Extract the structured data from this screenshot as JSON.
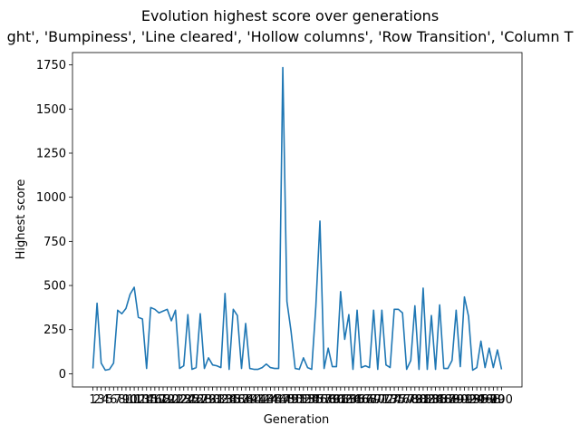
{
  "chart_data": {
    "type": "line",
    "title": "Evolution highest score over generations",
    "subtitle": "ght', 'Bumpiness', 'Line cleared', 'Hollow columns', 'Row Transition', 'Column T",
    "xlabel": "Generation",
    "ylabel": "Highest score",
    "ylim": [
      -75,
      1820
    ],
    "yticks": [
      0,
      250,
      500,
      750,
      1000,
      1250,
      1500,
      1750
    ],
    "grid": false,
    "line_color": "#1f77b4",
    "x": [
      1,
      2,
      3,
      4,
      5,
      6,
      7,
      8,
      9,
      10,
      11,
      12,
      13,
      14,
      15,
      16,
      17,
      18,
      19,
      20,
      21,
      22,
      23,
      24,
      25,
      26,
      27,
      28,
      29,
      30,
      31,
      32,
      33,
      34,
      35,
      36,
      37,
      38,
      39,
      40,
      41,
      42,
      43,
      44,
      45,
      46,
      47,
      48,
      49,
      50,
      51,
      52,
      53,
      54,
      55,
      56,
      57,
      58,
      59,
      60,
      61,
      62,
      63,
      64,
      65,
      66,
      67,
      68,
      69,
      70,
      71,
      72,
      73,
      74,
      75,
      76,
      77,
      78,
      79,
      80,
      81,
      82,
      83,
      84,
      85,
      86,
      87,
      88,
      89,
      90,
      91,
      92,
      93,
      94,
      95,
      96,
      97,
      98,
      99,
      100
    ],
    "series": [
      {
        "values": [
          30,
          400,
          60,
          20,
          25,
          60,
          360,
          340,
          370,
          450,
          490,
          320,
          310,
          30,
          375,
          365,
          345,
          355,
          365,
          300,
          360,
          30,
          45,
          335,
          25,
          35,
          340,
          30,
          90,
          50,
          45,
          35,
          455,
          25,
          365,
          330,
          30,
          285,
          30,
          25,
          25,
          35,
          55,
          35,
          30,
          30,
          1735,
          410,
          240,
          30,
          25,
          90,
          35,
          25,
          380,
          865,
          30,
          145,
          40,
          40,
          465,
          195,
          335,
          25,
          360,
          35,
          45,
          35,
          360,
          25,
          360,
          50,
          35,
          365,
          365,
          345,
          25,
          75,
          385,
          25,
          485,
          25,
          330,
          25,
          390,
          30,
          30,
          75,
          360,
          40,
          435,
          325,
          20,
          35,
          185,
          35,
          145,
          35,
          135,
          25
        ]
      }
    ],
    "x_tick_labels": [
      "1",
      "2",
      "3",
      "4",
      "5",
      "6",
      "7",
      "8",
      "9",
      "10",
      "11",
      "12",
      "13",
      "14",
      "15",
      "16",
      "17",
      "18",
      "19",
      "20",
      "21",
      "22",
      "23",
      "24",
      "25",
      "26",
      "27",
      "28",
      "29",
      "30",
      "31",
      "32",
      "33",
      "34",
      "35",
      "36",
      "37",
      "38",
      "39",
      "40",
      "41",
      "42",
      "43",
      "44",
      "45",
      "46",
      "47",
      "48",
      "49",
      "50",
      "51",
      "52",
      "53",
      "54",
      "55",
      "56",
      "57",
      "58",
      "59",
      "60",
      "61",
      "62",
      "63",
      "64",
      "65",
      "66",
      "67",
      "68",
      "69",
      "70",
      "71",
      "72",
      "73",
      "74",
      "75",
      "76",
      "77",
      "78",
      "79",
      "80",
      "81",
      "82",
      "83",
      "84",
      "85",
      "86",
      "87",
      "88",
      "89",
      "90",
      "91",
      "92",
      "93",
      "94",
      "95",
      "96",
      "97",
      "98",
      "99",
      "100"
    ]
  }
}
